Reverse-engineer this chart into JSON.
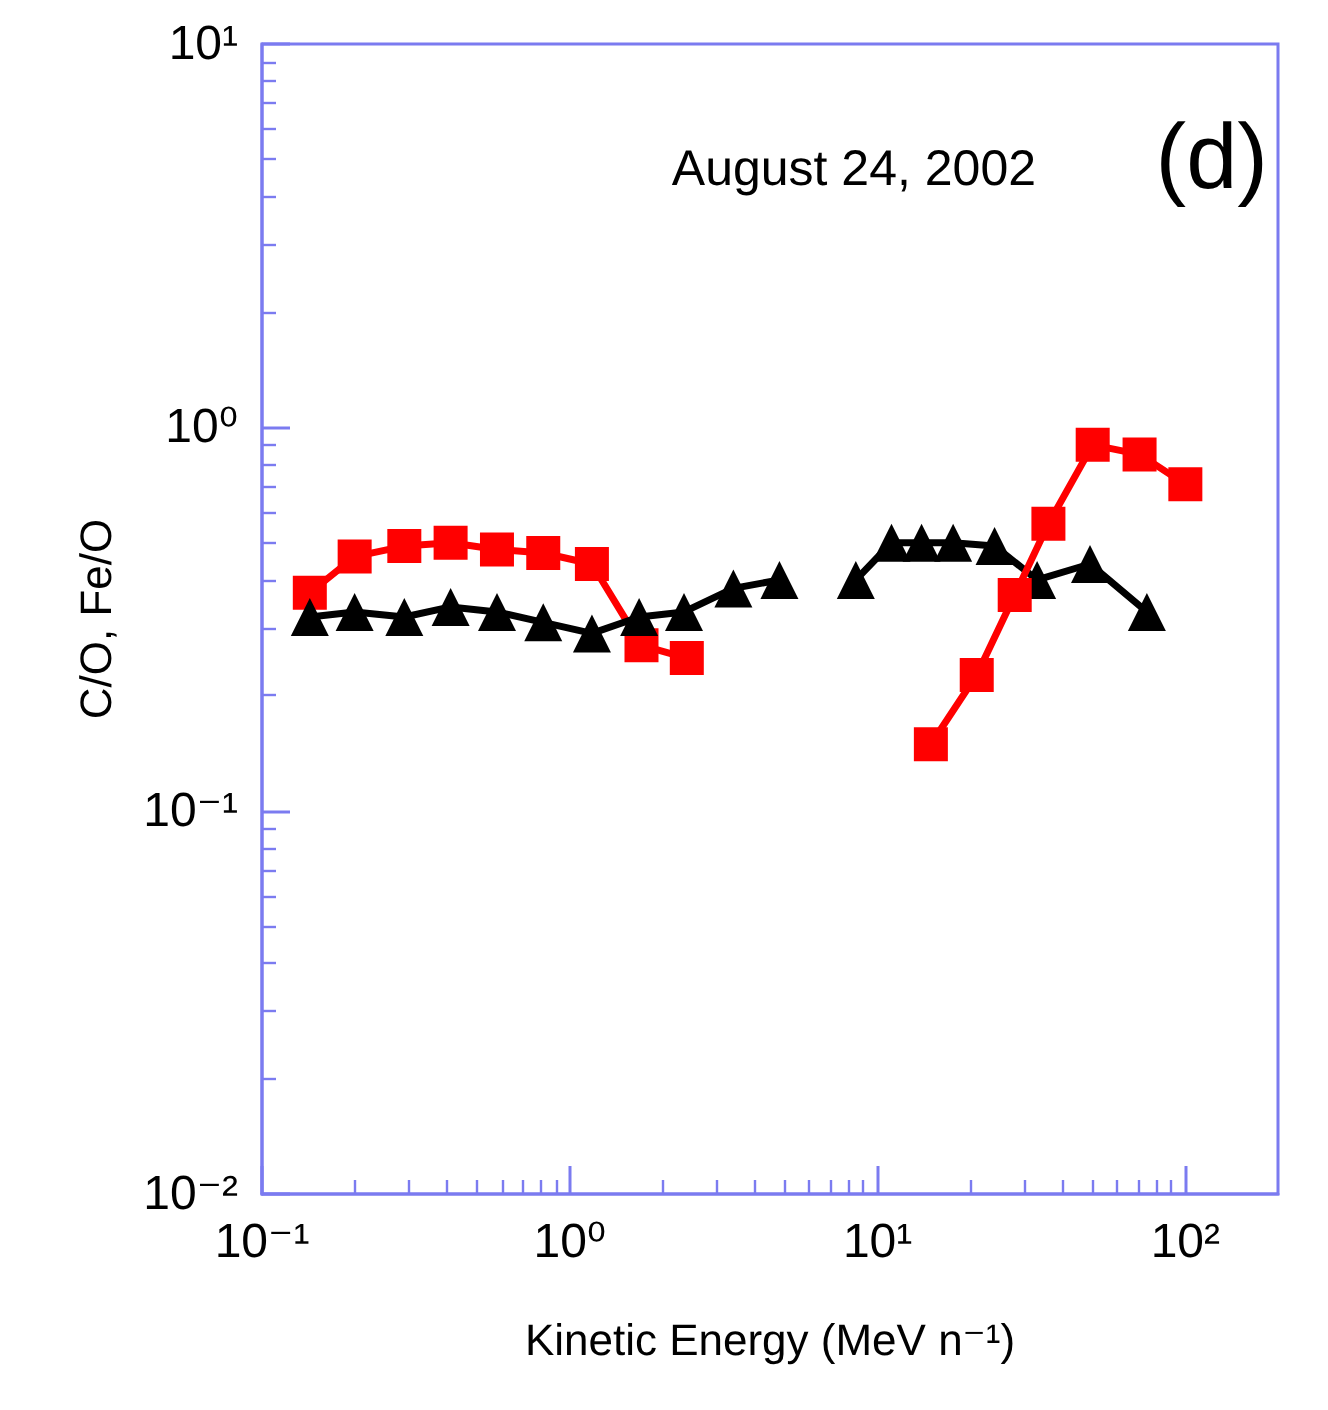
{
  "chart_data": {
    "type": "line",
    "log": "xy",
    "xlabel": "Kinetic Energy (MeV n⁻¹)",
    "ylabel": "C/O, Fe/O",
    "annotations": [
      "August 24, 2002",
      "(d)"
    ],
    "xlim": [
      0.1,
      200
    ],
    "ylim": [
      0.01,
      10
    ],
    "xticks": [
      {
        "value": 0.1,
        "label": "10⁻¹"
      },
      {
        "value": 1,
        "label": "10⁰"
      },
      {
        "value": 10,
        "label": "10¹"
      },
      {
        "value": 100,
        "label": "10²"
      }
    ],
    "yticks": [
      {
        "value": 0.01,
        "label": "10⁻²"
      },
      {
        "value": 0.1,
        "label": "10⁻¹"
      },
      {
        "value": 1,
        "label": "10⁰"
      },
      {
        "value": 10,
        "label": "10¹"
      }
    ],
    "grid": false,
    "line_style": "solid",
    "series": [
      {
        "color": "#ff0000",
        "marker": "square",
        "x": [
          0.143,
          0.2,
          0.29,
          0.41,
          0.58,
          0.82,
          1.18,
          1.71,
          2.4
        ],
        "values": [
          0.37,
          0.46,
          0.49,
          0.5,
          0.48,
          0.47,
          0.44,
          0.27,
          0.25
        ]
      },
      {
        "color": "#000000",
        "marker": "triangle",
        "x": [
          0.143,
          0.2,
          0.29,
          0.41,
          0.58,
          0.82,
          1.18,
          1.68,
          2.35,
          3.4,
          4.8
        ],
        "values": [
          0.32,
          0.33,
          0.32,
          0.34,
          0.33,
          0.31,
          0.29,
          0.32,
          0.33,
          0.38,
          0.4
        ]
      },
      {
        "color": "#000000",
        "marker": "triangle",
        "x": [
          8.5,
          11.1,
          13.9,
          17.6,
          24,
          33,
          49,
          75
        ],
        "values": [
          0.4,
          0.5,
          0.5,
          0.5,
          0.49,
          0.4,
          0.44,
          0.33
        ]
      },
      {
        "color": "#ff0000",
        "marker": "square",
        "x": [
          14.9,
          21,
          27.9,
          35.9,
          50,
          71,
          100
        ],
        "values": [
          0.149,
          0.226,
          0.365,
          0.56,
          0.9,
          0.85,
          0.71
        ]
      }
    ]
  }
}
